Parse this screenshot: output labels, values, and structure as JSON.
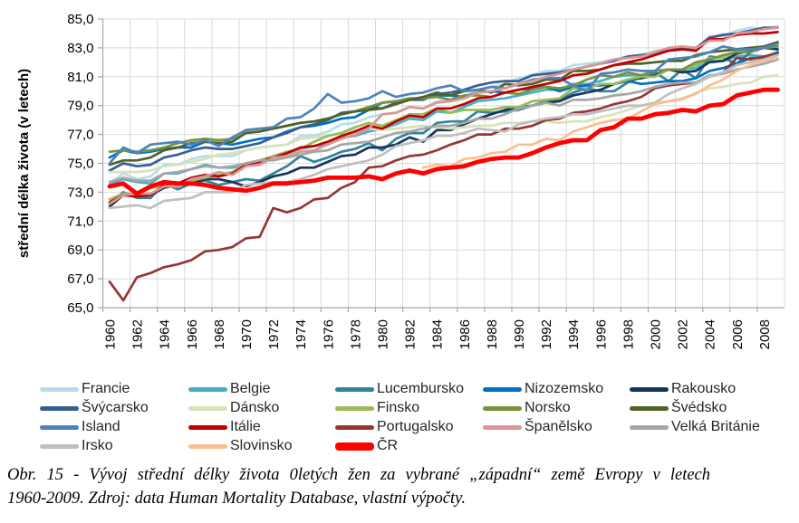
{
  "chart_data": {
    "type": "line",
    "title": "",
    "xlabel": "",
    "ylabel": "střední délka života (v letech)",
    "ylim": [
      65.0,
      85.0
    ],
    "ytick_step": 2.0,
    "x_range": [
      1960,
      2009
    ],
    "grid": true,
    "legend_position": "bottom",
    "y_tick_labels": [
      "85,0",
      "83,0",
      "81,0",
      "79,0",
      "77,0",
      "75,0",
      "73,0",
      "71,0",
      "69,0",
      "67,0",
      "65,0"
    ],
    "x_tick_labels": [
      "1960",
      "1962",
      "1964",
      "1966",
      "1968",
      "1970",
      "1972",
      "1974",
      "1976",
      "1978",
      "1980",
      "1982",
      "1984",
      "1986",
      "1988",
      "1990",
      "1992",
      "1994",
      "1996",
      "1998",
      "2000",
      "2002",
      "2004",
      "2006",
      "2008"
    ],
    "series": [
      {
        "name": "Francie",
        "color": "#b7dee8",
        "start_year": 1960,
        "emphasis": false,
        "values": [
          73.6,
          74.3,
          73.9,
          74.1,
          74.9,
          74.9,
          75.3,
          75.5,
          75.5,
          75.5,
          75.9,
          76.1,
          76.2,
          76.3,
          76.9,
          76.9,
          77.2,
          77.7,
          77.8,
          78.2,
          78.4,
          78.5,
          78.9,
          78.8,
          79.3,
          79.4,
          79.7,
          80.0,
          80.3,
          80.5,
          80.9,
          81.1,
          81.4,
          81.4,
          81.8,
          81.9,
          82.0,
          82.2,
          82.4,
          82.5,
          82.8,
          82.9,
          83.0,
          82.9,
          83.8,
          83.8,
          84.2,
          84.4,
          84.3,
          84.5
        ]
      },
      {
        "name": "Belgie",
        "color": "#4bacc6",
        "start_year": 1960,
        "emphasis": false,
        "values": [
          73.5,
          73.9,
          73.7,
          73.6,
          74.3,
          74.3,
          74.6,
          74.9,
          74.7,
          74.7,
          75.0,
          75.2,
          75.4,
          75.7,
          76.0,
          76.2,
          76.3,
          76.8,
          76.9,
          77.2,
          77.4,
          77.7,
          78.1,
          78.0,
          78.6,
          78.5,
          78.9,
          79.3,
          79.4,
          79.5,
          79.7,
          79.9,
          80.1,
          80.1,
          80.5,
          80.5,
          80.7,
          81.0,
          81.1,
          81.1,
          81.4,
          81.5,
          81.5,
          81.6,
          82.1,
          82.1,
          82.4,
          82.5,
          82.4,
          82.7
        ]
      },
      {
        "name": "Lucembursko",
        "color": "#31849b",
        "start_year": 1960,
        "emphasis": false,
        "values": [
          72.2,
          73.0,
          72.6,
          72.6,
          73.6,
          73.2,
          73.6,
          73.8,
          73.5,
          73.7,
          73.9,
          73.8,
          74.3,
          74.8,
          75.5,
          75.1,
          75.4,
          75.8,
          76.0,
          76.4,
          75.9,
          76.7,
          77.1,
          77.1,
          77.8,
          77.9,
          77.9,
          78.6,
          78.5,
          78.6,
          78.7,
          79.0,
          79.3,
          79.4,
          79.9,
          80.2,
          80.0,
          80.0,
          80.6,
          81.0,
          81.3,
          80.7,
          81.5,
          80.9,
          82.4,
          82.3,
          81.9,
          82.7,
          83.1,
          83.3
        ]
      },
      {
        "name": "Nizozemsko",
        "color": "#0070c0",
        "start_year": 1960,
        "emphasis": false,
        "values": [
          75.4,
          75.9,
          75.7,
          75.8,
          76.0,
          76.1,
          76.1,
          76.5,
          76.4,
          76.3,
          76.5,
          76.7,
          76.8,
          77.2,
          77.5,
          77.6,
          77.8,
          78.1,
          78.2,
          78.7,
          79.2,
          79.3,
          79.5,
          79.5,
          79.7,
          79.7,
          79.6,
          79.9,
          80.0,
          79.9,
          80.1,
          80.2,
          80.3,
          80.0,
          80.3,
          80.4,
          80.4,
          80.5,
          80.7,
          80.5,
          80.6,
          80.7,
          80.7,
          80.9,
          81.4,
          81.6,
          81.9,
          82.3,
          82.3,
          82.7
        ]
      },
      {
        "name": "Rakousko",
        "color": "#17365d",
        "start_year": 1960,
        "emphasis": false,
        "values": [
          72.0,
          72.8,
          72.7,
          72.8,
          73.3,
          73.5,
          73.6,
          73.9,
          73.9,
          73.7,
          73.4,
          73.7,
          74.1,
          74.3,
          74.7,
          74.7,
          75.1,
          75.5,
          75.6,
          76.1,
          76.1,
          76.3,
          76.8,
          76.5,
          77.3,
          77.3,
          77.7,
          78.1,
          78.4,
          78.7,
          78.9,
          79.0,
          79.2,
          79.3,
          79.7,
          79.9,
          80.1,
          80.5,
          80.8,
          80.9,
          81.1,
          81.5,
          81.3,
          81.4,
          82.0,
          82.1,
          82.6,
          82.8,
          83.0,
          82.9
        ]
      },
      {
        "name": "Švýcarsko",
        "color": "#365f91",
        "start_year": 1960,
        "emphasis": false,
        "values": [
          74.5,
          75.0,
          74.8,
          74.9,
          75.4,
          75.6,
          75.9,
          76.1,
          76.0,
          76.0,
          76.2,
          76.4,
          76.8,
          77.1,
          77.5,
          77.7,
          78.0,
          78.5,
          78.6,
          78.9,
          78.8,
          79.2,
          79.4,
          79.4,
          79.8,
          79.9,
          80.1,
          80.4,
          80.6,
          80.7,
          80.7,
          81.1,
          81.2,
          81.3,
          81.5,
          81.7,
          81.9,
          82.1,
          82.4,
          82.5,
          82.6,
          83.0,
          83.0,
          83.0,
          83.7,
          83.9,
          84.0,
          84.2,
          84.4,
          84.4
        ]
      },
      {
        "name": "Dánsko",
        "color": "#d6e3bc",
        "start_year": 1960,
        "emphasis": false,
        "values": [
          74.4,
          74.4,
          74.4,
          74.5,
          74.8,
          74.9,
          75.1,
          75.3,
          75.6,
          75.7,
          75.9,
          76.1,
          76.2,
          76.3,
          76.7,
          76.8,
          76.9,
          77.1,
          77.3,
          77.4,
          77.3,
          77.4,
          77.5,
          77.6,
          77.5,
          77.4,
          77.5,
          77.6,
          77.6,
          77.8,
          77.8,
          77.9,
          77.9,
          77.8,
          77.9,
          77.9,
          78.2,
          78.4,
          78.7,
          79.0,
          79.2,
          79.3,
          79.4,
          79.9,
          80.2,
          80.3,
          80.5,
          80.6,
          81.0,
          81.1
        ]
      },
      {
        "name": "Finsko",
        "color": "#9bbb59",
        "start_year": 1960,
        "emphasis": false,
        "values": [
          72.5,
          72.9,
          72.9,
          73.3,
          73.4,
          73.6,
          73.8,
          74.0,
          74.2,
          74.4,
          75.0,
          75.2,
          75.5,
          75.8,
          76.0,
          76.5,
          76.9,
          77.1,
          77.5,
          77.8,
          77.6,
          78.0,
          78.4,
          78.4,
          78.8,
          78.5,
          78.7,
          78.7,
          78.7,
          78.9,
          78.9,
          79.3,
          79.4,
          79.5,
          80.2,
          80.2,
          80.5,
          80.5,
          80.8,
          81.0,
          81.0,
          81.5,
          81.5,
          81.8,
          82.3,
          82.3,
          82.8,
          82.9,
          83.0,
          83.1
        ]
      },
      {
        "name": "Norsko",
        "color": "#77933c",
        "start_year": 1960,
        "emphasis": false,
        "values": [
          75.8,
          75.9,
          75.8,
          75.9,
          76.1,
          76.4,
          76.6,
          76.7,
          76.6,
          76.7,
          77.3,
          77.4,
          77.4,
          77.6,
          77.8,
          77.9,
          78.1,
          78.4,
          78.6,
          78.9,
          79.2,
          79.3,
          79.5,
          79.5,
          79.6,
          79.4,
          79.7,
          79.7,
          79.6,
          79.9,
          79.8,
          80.1,
          80.3,
          80.2,
          80.4,
          80.8,
          81.1,
          81.0,
          81.3,
          81.1,
          81.4,
          81.5,
          81.5,
          82.0,
          82.2,
          82.5,
          82.7,
          82.7,
          83.0,
          83.1
        ]
      },
      {
        "name": "Švédsko",
        "color": "#4f6228",
        "start_year": 1960,
        "emphasis": false,
        "values": [
          74.9,
          75.2,
          75.2,
          75.4,
          75.9,
          76.1,
          76.4,
          76.5,
          76.4,
          76.5,
          77.1,
          77.2,
          77.4,
          77.6,
          77.8,
          77.9,
          78.1,
          78.4,
          78.6,
          78.7,
          78.8,
          79.1,
          79.4,
          79.6,
          79.9,
          79.7,
          80.0,
          80.1,
          79.9,
          80.5,
          80.4,
          80.5,
          80.8,
          80.8,
          81.4,
          81.4,
          81.5,
          81.8,
          81.9,
          81.9,
          82.0,
          82.1,
          82.1,
          82.5,
          82.7,
          82.8,
          82.9,
          83.0,
          83.1,
          83.4
        ]
      },
      {
        "name": "Island",
        "color": "#4f81bd",
        "start_year": 1960,
        "emphasis": false,
        "values": [
          75.0,
          76.1,
          75.7,
          76.3,
          76.4,
          76.5,
          76.3,
          76.6,
          76.2,
          76.8,
          77.3,
          77.4,
          77.5,
          78.1,
          78.2,
          78.8,
          79.8,
          79.2,
          79.3,
          79.5,
          80.0,
          79.6,
          79.8,
          79.9,
          80.2,
          80.4,
          80.0,
          80.1,
          80.3,
          80.2,
          80.5,
          80.8,
          80.9,
          80.9,
          80.4,
          80.0,
          81.2,
          81.3,
          81.5,
          81.4,
          81.4,
          82.2,
          82.3,
          82.4,
          82.7,
          83.1,
          82.9,
          82.9,
          83.0,
          83.3
        ]
      },
      {
        "name": "Itálie",
        "color": "#c00000",
        "start_year": 1960,
        "emphasis": false,
        "values": [
          72.3,
          72.8,
          72.7,
          72.8,
          73.5,
          73.6,
          74.0,
          74.2,
          74.1,
          74.3,
          74.9,
          75.1,
          75.4,
          75.7,
          76.1,
          76.2,
          76.5,
          76.9,
          77.2,
          77.6,
          77.4,
          77.9,
          78.3,
          78.2,
          78.8,
          78.8,
          79.1,
          79.5,
          79.6,
          79.9,
          80.1,
          80.3,
          80.5,
          80.7,
          81.1,
          81.2,
          81.5,
          81.8,
          82.0,
          82.2,
          82.5,
          82.8,
          82.9,
          82.8,
          83.6,
          83.6,
          83.9,
          84.0,
          84.0,
          84.1
        ]
      },
      {
        "name": "Portugalsko",
        "color": "#953735",
        "start_year": 1960,
        "emphasis": false,
        "values": [
          66.8,
          65.5,
          67.1,
          67.4,
          67.8,
          68.0,
          68.3,
          68.9,
          69.0,
          69.2,
          69.8,
          69.9,
          71.9,
          71.6,
          71.9,
          72.5,
          72.6,
          73.3,
          73.7,
          74.7,
          74.8,
          75.2,
          75.5,
          75.6,
          75.9,
          76.3,
          76.6,
          77.0,
          77.0,
          77.4,
          77.4,
          77.6,
          78.0,
          78.1,
          78.5,
          78.6,
          78.8,
          79.1,
          79.3,
          79.6,
          80.2,
          80.4,
          80.5,
          80.6,
          81.0,
          81.3,
          82.3,
          82.2,
          82.4,
          82.6
        ]
      },
      {
        "name": "Španělsko",
        "color": "#d99694",
        "start_year": 1960,
        "emphasis": false,
        "values": [
          72.2,
          72.8,
          72.9,
          72.9,
          73.4,
          73.4,
          73.9,
          74.1,
          74.4,
          74.2,
          74.8,
          74.9,
          75.4,
          75.5,
          75.8,
          75.9,
          76.3,
          76.7,
          77.0,
          77.4,
          78.4,
          78.5,
          78.9,
          78.8,
          79.2,
          79.3,
          79.5,
          79.9,
          80.0,
          80.2,
          80.5,
          80.7,
          81.0,
          81.2,
          81.5,
          81.7,
          81.9,
          82.2,
          82.3,
          82.4,
          82.7,
          83.0,
          83.1,
          83.0,
          83.5,
          83.5,
          84.0,
          84.1,
          84.3,
          84.4
        ]
      },
      {
        "name": "Velká Británie",
        "color": "#a6a6a6",
        "start_year": 1960,
        "emphasis": false,
        "values": [
          73.7,
          74.0,
          73.8,
          73.8,
          74.3,
          74.4,
          74.6,
          74.8,
          74.7,
          74.8,
          75.0,
          75.2,
          75.2,
          75.4,
          75.6,
          75.8,
          75.9,
          76.3,
          76.4,
          76.5,
          76.8,
          77.1,
          77.2,
          77.4,
          77.6,
          77.6,
          77.8,
          78.1,
          78.1,
          78.4,
          78.8,
          79.0,
          79.2,
          79.0,
          79.4,
          79.4,
          79.5,
          79.7,
          79.8,
          80.0,
          80.3,
          80.5,
          80.6,
          80.6,
          81.1,
          81.2,
          81.5,
          81.7,
          81.9,
          82.2
        ]
      },
      {
        "name": "Irsko",
        "color": "#bfbfbf",
        "start_year": 1960,
        "emphasis": false,
        "values": [
          71.9,
          72.0,
          72.1,
          71.9,
          72.4,
          72.5,
          72.6,
          73.0,
          73.0,
          73.0,
          73.5,
          73.6,
          73.7,
          73.7,
          73.9,
          74.2,
          74.6,
          74.8,
          75.0,
          75.2,
          75.6,
          76.2,
          76.4,
          76.6,
          76.9,
          76.9,
          77.1,
          77.4,
          77.3,
          77.2,
          77.7,
          77.9,
          78.1,
          78.2,
          78.4,
          78.4,
          78.6,
          78.8,
          79.0,
          79.0,
          79.2,
          79.8,
          80.2,
          80.5,
          81.0,
          81.3,
          81.8,
          82.0,
          82.2,
          82.5
        ]
      },
      {
        "name": "Slovinsko",
        "color": "#fabf8f",
        "start_year": 1983,
        "emphasis": false,
        "values": [
          74.7,
          74.9,
          74.8,
          75.3,
          75.4,
          75.7,
          75.8,
          76.3,
          76.3,
          76.7,
          76.6,
          77.2,
          77.5,
          77.8,
          78.0,
          78.1,
          78.6,
          79.1,
          79.3,
          79.5,
          79.8,
          80.4,
          80.8,
          81.4,
          81.8,
          82.1,
          82.3
        ]
      },
      {
        "name": "ČR",
        "color": "#ff0000",
        "start_year": 1960,
        "emphasis": true,
        "values": [
          73.4,
          73.6,
          72.9,
          73.4,
          73.7,
          73.6,
          73.6,
          73.5,
          73.3,
          73.2,
          73.1,
          73.3,
          73.6,
          73.6,
          73.7,
          73.8,
          74.0,
          74.0,
          74.0,
          74.1,
          73.9,
          74.3,
          74.5,
          74.3,
          74.6,
          74.7,
          74.8,
          75.1,
          75.3,
          75.4,
          75.4,
          75.7,
          76.1,
          76.4,
          76.6,
          76.6,
          77.3,
          77.5,
          78.1,
          78.1,
          78.4,
          78.5,
          78.7,
          78.6,
          79.0,
          79.1,
          79.7,
          79.9,
          80.1,
          80.1
        ]
      }
    ],
    "colors": {
      "grid": "#d9d9d9",
      "axis": "#a6a6a6",
      "tick_text": "#000000",
      "emphasis_line": "#ff0000"
    }
  },
  "caption": {
    "line1": "Obr. 15 - Vývoj střední délky života 0letých žen za vybrané „západní“ země Evropy v letech",
    "line2": "1960-2009. Zdroj: data Human Mortality Database, vlastní výpočty."
  }
}
